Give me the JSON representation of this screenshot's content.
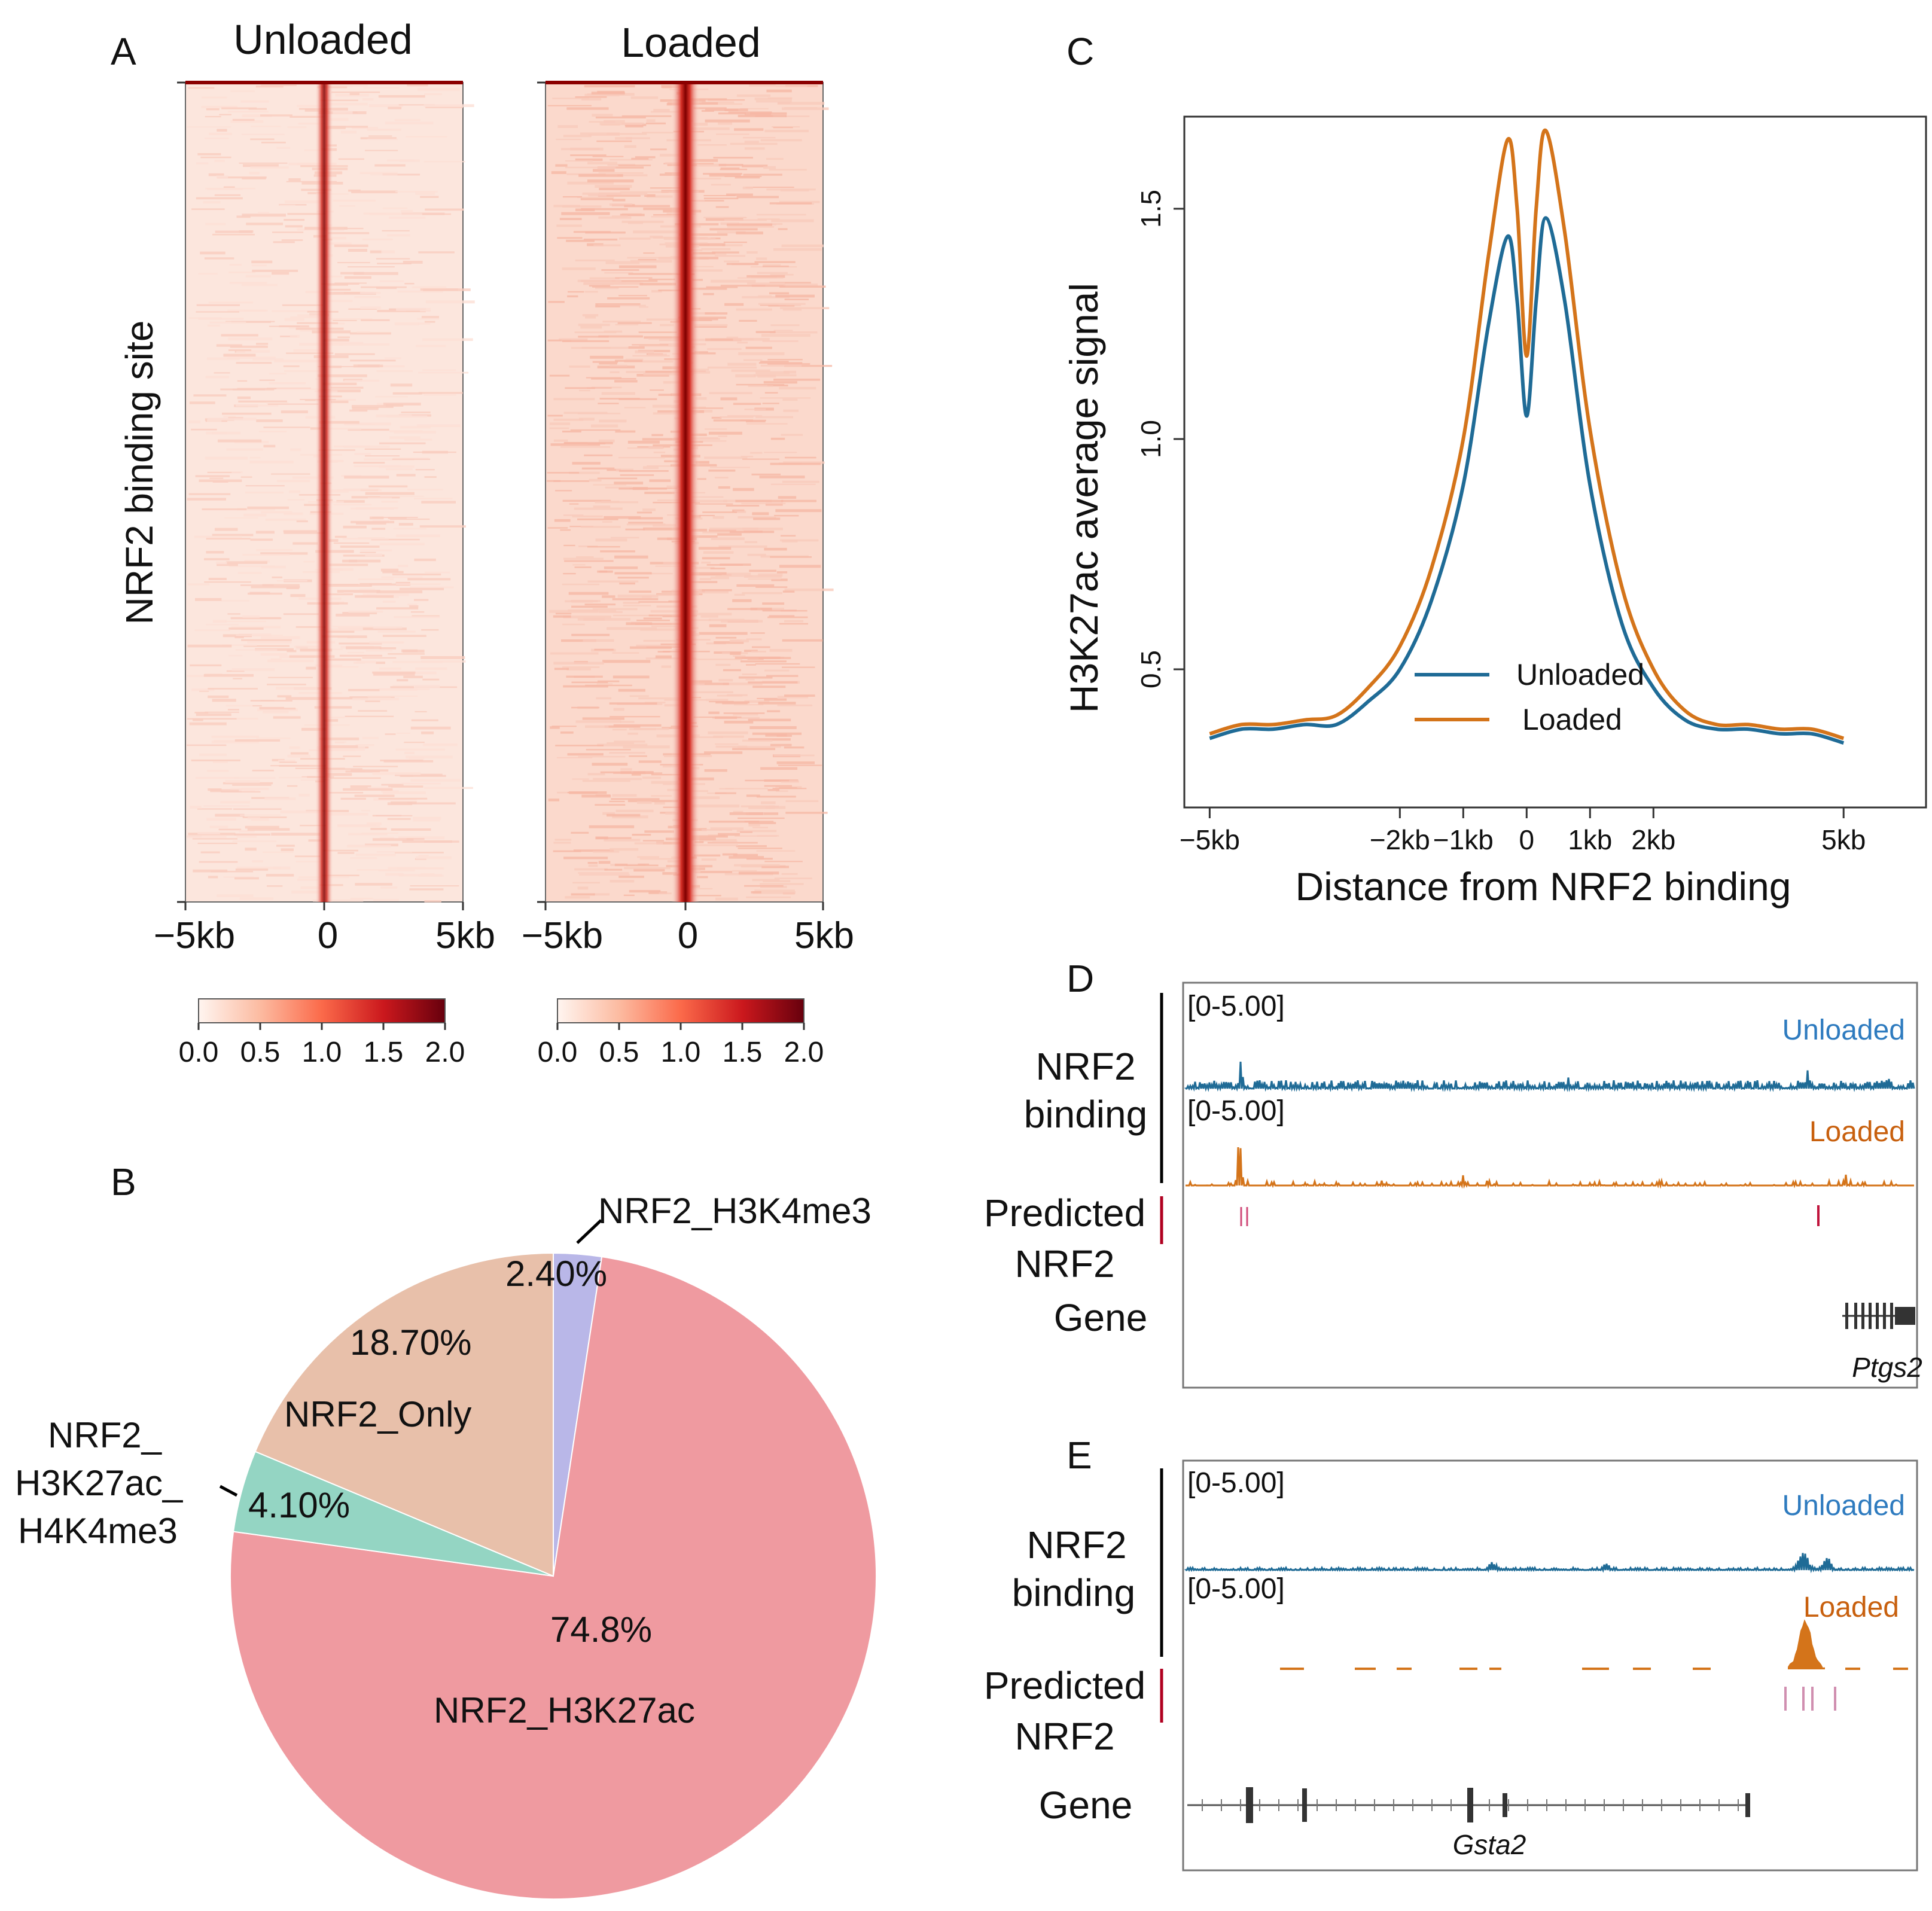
{
  "panels": {
    "A": {
      "letter": "A",
      "unloaded_title": "Unloaded",
      "loaded_title": "Loaded",
      "ylabel": "NRF2 binding site",
      "x_ticks": [
        "−5kb",
        "0",
        "5kb"
      ],
      "colorbar_ticks": [
        "0.0",
        "0.5",
        "1.0",
        "1.5",
        "2.0"
      ],
      "colors": {
        "low": "#fdece6",
        "mid": "#ef6548",
        "high": "#67000d"
      }
    },
    "B": {
      "letter": "B",
      "labels": {
        "h3k4me3": "NRF2_H3K4me3",
        "only": "NRF2_Only",
        "triple_1": "NRF2_",
        "triple_2": "H3K27ac_",
        "triple_3": "H4K4me3",
        "h3k27ac": "NRF2_H3K27ac"
      },
      "pct": {
        "h3k4me3": "2.40%",
        "only": "18.70%",
        "triple": "4.10%",
        "h3k27ac": "74.8%"
      }
    },
    "C": {
      "letter": "C"
    },
    "D": {
      "letter": "D",
      "range_1": "[0-5.00]",
      "range_2": "[0-5.00]",
      "unloaded": "Unloaded",
      "loaded": "Loaded",
      "nrf2": "NRF2",
      "binding": "binding",
      "predicted": "Predicted",
      "predicted_2": "NRF2",
      "gene": "Gene",
      "gene_name": "Ptgs2"
    },
    "E": {
      "letter": "E",
      "range_1": "[0-5.00]",
      "range_2": "[0-5.00]",
      "unloaded": "Unloaded",
      "loaded": "Loaded",
      "nrf2": "NRF2",
      "binding": "binding",
      "predicted": "Predicted",
      "predicted_2": "NRF2",
      "gene": "Gene",
      "gene_name": "Gsta2"
    }
  },
  "chart_data": [
    {
      "type": "pie",
      "title": "",
      "slices": [
        {
          "name": "NRF2_H3K4me3",
          "value": 2.4,
          "label": "2.40%",
          "color": "#b9b7e8"
        },
        {
          "name": "NRF2_H3K27ac",
          "value": 74.8,
          "label": "74.8%",
          "color": "#ef9aa0"
        },
        {
          "name": "NRF2_H3K27ac_H4K4me3",
          "value": 4.1,
          "label": "4.10%",
          "color": "#94d5c3"
        },
        {
          "name": "NRF2_Only",
          "value": 18.7,
          "label": "18.70%",
          "color": "#e8c0aa"
        }
      ]
    },
    {
      "type": "line",
      "title": "",
      "xlabel": "Distance from NRF2 binding",
      "ylabel": "H3K27ac average signal",
      "xlim": [
        -5.4,
        6.3
      ],
      "ylim": [
        0.2,
        1.7
      ],
      "x_ticks": [
        {
          "value": -5,
          "label": "−5kb"
        },
        {
          "value": -2,
          "label": "−2kb"
        },
        {
          "value": -1,
          "label": "−1kb"
        },
        {
          "value": 0,
          "label": "0"
        },
        {
          "value": 1,
          "label": "1kb"
        },
        {
          "value": 2,
          "label": "2kb"
        },
        {
          "value": 5,
          "label": "5kb"
        }
      ],
      "y_ticks": [
        0.5,
        1.0,
        1.5
      ],
      "legend": "center",
      "series": [
        {
          "name": "Unloaded",
          "color": "#1f6b96",
          "x": [
            -5,
            -4.5,
            -4,
            -3.5,
            -3,
            -2.5,
            -2,
            -1.5,
            -1,
            -0.6,
            -0.3,
            -0.15,
            0,
            0.15,
            0.3,
            0.6,
            1,
            1.5,
            2,
            2.5,
            3,
            3.5,
            4,
            4.5,
            5
          ],
          "y": [
            0.35,
            0.37,
            0.37,
            0.38,
            0.38,
            0.43,
            0.5,
            0.65,
            0.9,
            1.25,
            1.44,
            1.3,
            1.05,
            1.3,
            1.48,
            1.3,
            0.9,
            0.6,
            0.46,
            0.39,
            0.37,
            0.37,
            0.36,
            0.36,
            0.34
          ]
        },
        {
          "name": "Loaded",
          "color": "#d4741a",
          "x": [
            -5,
            -4.5,
            -4,
            -3.5,
            -3,
            -2.5,
            -2,
            -1.5,
            -1,
            -0.6,
            -0.3,
            -0.15,
            0,
            0.15,
            0.3,
            0.6,
            1,
            1.5,
            2,
            2.5,
            3,
            3.5,
            4,
            4.5,
            5
          ],
          "y": [
            0.36,
            0.38,
            0.38,
            0.39,
            0.4,
            0.46,
            0.55,
            0.72,
            1.0,
            1.4,
            1.65,
            1.5,
            1.18,
            1.5,
            1.67,
            1.45,
            1.02,
            0.68,
            0.5,
            0.41,
            0.38,
            0.38,
            0.37,
            0.37,
            0.35
          ]
        }
      ]
    }
  ]
}
